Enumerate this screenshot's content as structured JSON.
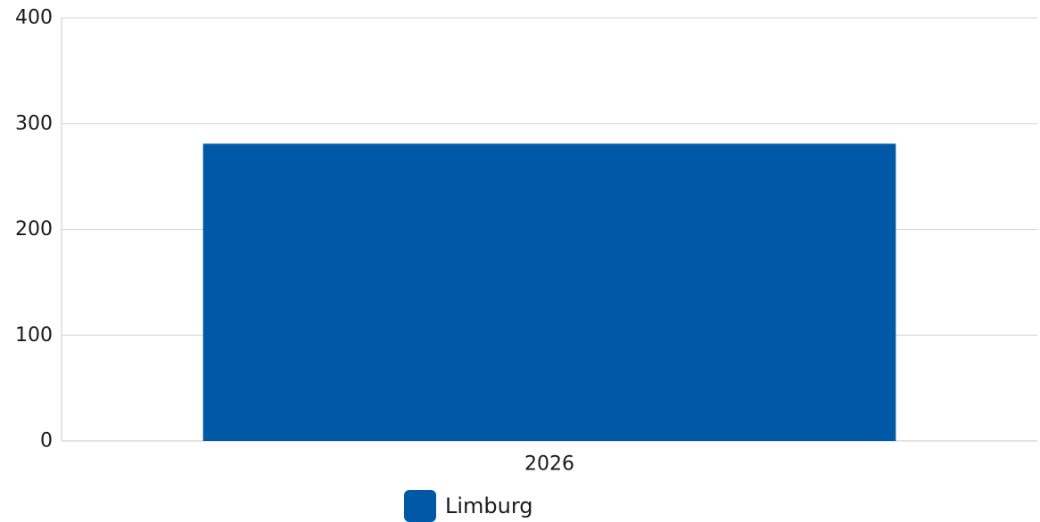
{
  "chart_data": {
    "type": "bar",
    "categories": [
      "2026"
    ],
    "series": [
      {
        "name": "Limburg",
        "values": [
          281
        ],
        "color": "#0059a6"
      }
    ],
    "yticks": [
      0,
      100,
      200,
      300,
      400
    ],
    "ylim": [
      0,
      400
    ],
    "grid": true,
    "legend_position": "bottom"
  }
}
